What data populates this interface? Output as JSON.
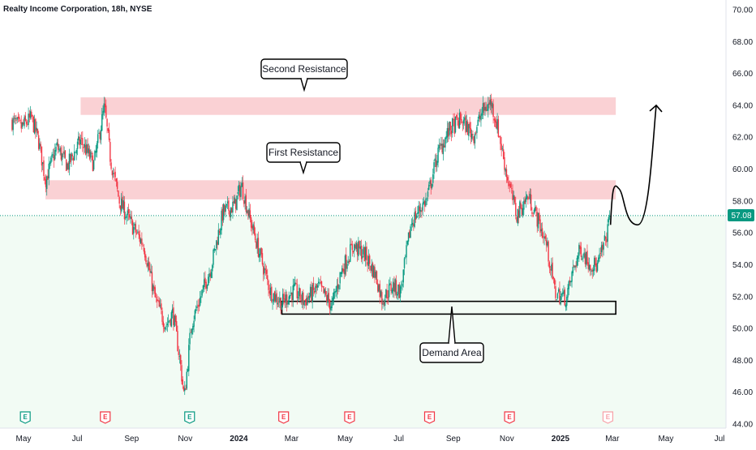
{
  "header": {
    "title": "Realty Income Corporation, 18h, NYSE"
  },
  "price_tag": {
    "label": "57.08",
    "color": "#089981"
  },
  "callouts": {
    "second_resistance": "Second Resistance",
    "first_resistance": "First Resistance",
    "demand_area": "Demand Area"
  },
  "colors": {
    "up": "#089981",
    "down": "#f23645",
    "zone_fill": "#f9c9cc",
    "demand_border": "#000000",
    "background_tint": "#f2fbf4"
  },
  "chart_data": {
    "type": "candlestick",
    "y_axis": {
      "position": "right",
      "ticks": [
        "70.00",
        "68.00",
        "66.00",
        "64.00",
        "62.00",
        "60.00",
        "58.00",
        "56.00",
        "54.00",
        "52.00",
        "50.00",
        "48.00",
        "46.00",
        "44.00"
      ],
      "ylim": [
        44,
        70.6
      ]
    },
    "x_axis": {
      "ticks": [
        "May",
        "Jul",
        "Sep",
        "Nov",
        "2024",
        "Mar",
        "May",
        "Jul",
        "Sep",
        "Nov",
        "2025",
        "Mar",
        "May",
        "Jul"
      ]
    },
    "last_price": 57.08,
    "zones": [
      {
        "name": "second-resistance-zone",
        "label": "Second Resistance",
        "low": 63.4,
        "high": 64.5,
        "x_start": "2023-07-05",
        "x_end": "2025-03-05"
      },
      {
        "name": "first-resistance-zone",
        "label": "First Resistance",
        "low": 58.1,
        "high": 59.3,
        "x_start": "2023-05-26",
        "x_end": "2025-03-05"
      },
      {
        "name": "demand-zone",
        "label": "Demand Area",
        "low": 50.9,
        "high": 51.7,
        "x_start": "2024-02-19",
        "x_end": "2025-03-05"
      }
    ],
    "earnings_markers": [
      {
        "date": "2023-05-03",
        "type": "up"
      },
      {
        "date": "2023-08-02",
        "type": "down"
      },
      {
        "date": "2023-11-06",
        "type": "up"
      },
      {
        "date": "2024-02-21",
        "type": "down"
      },
      {
        "date": "2024-05-06",
        "type": "down"
      },
      {
        "date": "2024-08-05",
        "type": "down"
      },
      {
        "date": "2024-11-04",
        "type": "down"
      },
      {
        "date": "2025-02-24",
        "type": "upcoming"
      }
    ],
    "price_path_anchors": [
      [
        "2023-04-18",
        63.0
      ],
      [
        "2023-04-28",
        62.6
      ],
      [
        "2023-05-10",
        63.2
      ],
      [
        "2023-05-18",
        61.8
      ],
      [
        "2023-05-26",
        59.3
      ],
      [
        "2023-06-08",
        61.4
      ],
      [
        "2023-06-20",
        60.2
      ],
      [
        "2023-07-05",
        61.8
      ],
      [
        "2023-07-20",
        60.3
      ],
      [
        "2023-08-01",
        63.9
      ],
      [
        "2023-08-08",
        60.6
      ],
      [
        "2023-08-18",
        58.0
      ],
      [
        "2023-09-01",
        56.5
      ],
      [
        "2023-09-15",
        55.2
      ],
      [
        "2023-09-28",
        51.8
      ],
      [
        "2023-10-10",
        50.2
      ],
      [
        "2023-10-18",
        51.0
      ],
      [
        "2023-10-26",
        48.0
      ],
      [
        "2023-10-31",
        45.6
      ],
      [
        "2023-11-08",
        50.3
      ],
      [
        "2023-11-20",
        52.2
      ],
      [
        "2023-12-01",
        54.0
      ],
      [
        "2023-12-14",
        57.3
      ],
      [
        "2023-12-27",
        57.7
      ],
      [
        "2024-01-04",
        59.0
      ],
      [
        "2024-01-12",
        57.2
      ],
      [
        "2024-01-24",
        54.8
      ],
      [
        "2024-02-06",
        52.3
      ],
      [
        "2024-02-19",
        51.6
      ],
      [
        "2024-03-04",
        52.4
      ],
      [
        "2024-03-15",
        51.7
      ],
      [
        "2024-04-01",
        52.6
      ],
      [
        "2024-04-16",
        51.4
      ],
      [
        "2024-04-26",
        53.5
      ],
      [
        "2024-05-10",
        55.2
      ],
      [
        "2024-05-24",
        54.6
      ],
      [
        "2024-06-05",
        53.3
      ],
      [
        "2024-06-12",
        51.8
      ],
      [
        "2024-06-24",
        52.7
      ],
      [
        "2024-07-03",
        52.3
      ],
      [
        "2024-07-15",
        56.6
      ],
      [
        "2024-07-25",
        57.5
      ],
      [
        "2024-08-02",
        58.1
      ],
      [
        "2024-08-14",
        60.9
      ],
      [
        "2024-08-28",
        62.5
      ],
      [
        "2024-09-10",
        63.1
      ],
      [
        "2024-09-24",
        62.1
      ],
      [
        "2024-10-04",
        63.6
      ],
      [
        "2024-10-14",
        64.2
      ],
      [
        "2024-10-22",
        62.5
      ],
      [
        "2024-11-01",
        59.6
      ],
      [
        "2024-11-12",
        57.1
      ],
      [
        "2024-11-25",
        58.3
      ],
      [
        "2024-12-05",
        57.0
      ],
      [
        "2024-12-16",
        55.3
      ],
      [
        "2024-12-26",
        52.2
      ],
      [
        "2025-01-08",
        51.9
      ],
      [
        "2025-01-16",
        53.8
      ],
      [
        "2025-01-24",
        55.0
      ],
      [
        "2025-02-03",
        54.1
      ],
      [
        "2025-02-12",
        53.9
      ],
      [
        "2025-02-21",
        55.5
      ],
      [
        "2025-02-27",
        57.08
      ]
    ],
    "projection": [
      [
        "2025-02-27",
        56.5
      ],
      [
        "2025-03-08",
        58.8
      ],
      [
        "2025-03-18",
        57.0
      ],
      [
        "2025-03-30",
        56.5
      ],
      [
        "2025-04-20",
        64.0
      ]
    ]
  }
}
